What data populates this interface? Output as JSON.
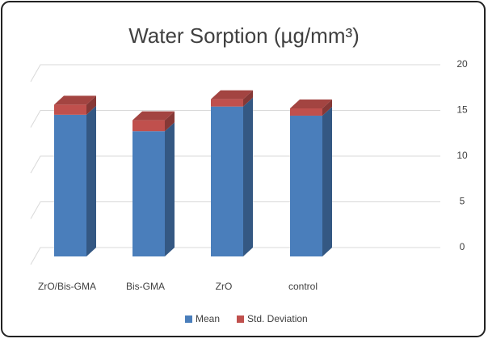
{
  "chart_data": {
    "type": "bar3d",
    "title": "Water Sorption (µg/mm³)",
    "categories": [
      "ZrO/Bis-GMA",
      "Bis-GMA",
      "ZrO",
      "control"
    ],
    "series": [
      {
        "name": "Mean",
        "color": "#4a7ebb",
        "values": [
          15.5,
          13.7,
          16.4,
          15.4
        ]
      },
      {
        "name": "Std. Deviation",
        "color": "#c0504d",
        "values": [
          1.1,
          1.2,
          0.8,
          0.8
        ]
      }
    ],
    "stacked": true,
    "ylim": [
      0,
      20
    ],
    "yticks": [
      0,
      5,
      10,
      15,
      20
    ],
    "grid": true,
    "legend": "bottom"
  }
}
